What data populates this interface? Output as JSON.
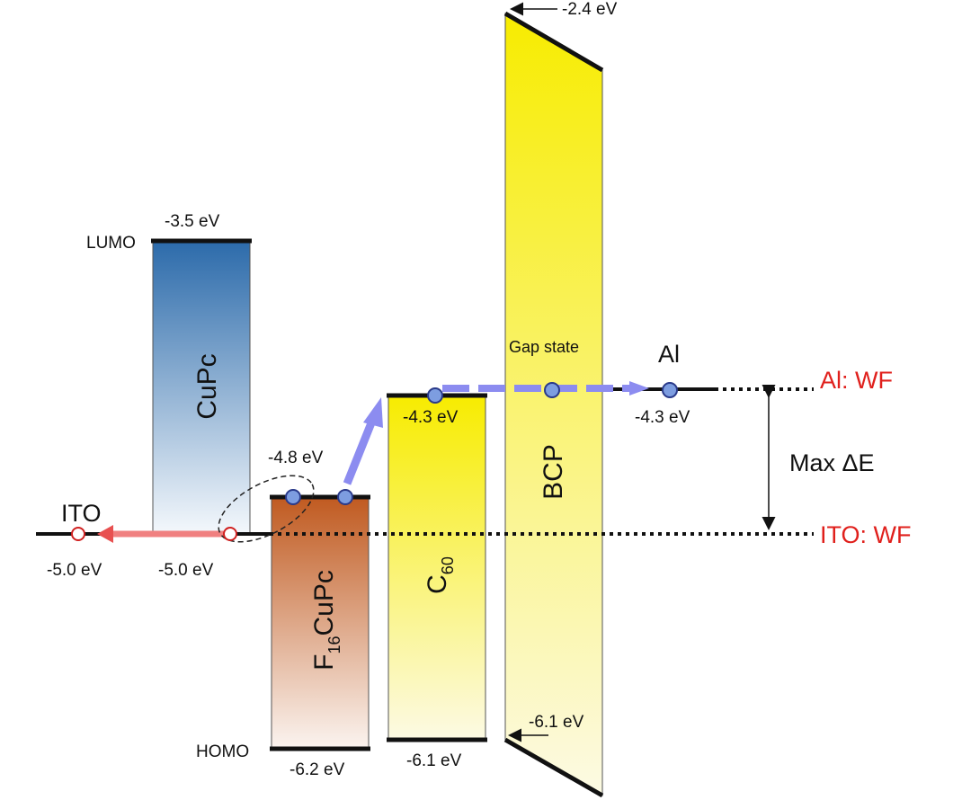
{
  "top_labels": {
    "bcp_lumo": "-2.4 eV",
    "cupc_lumo": "-3.5 eV",
    "lumo": "LUMO",
    "homo": "HOMO"
  },
  "materials": {
    "cupc": {
      "name": "CuPc"
    },
    "f16cupc": {
      "prefix": "F",
      "sub": "16",
      "suffix": "CuPc",
      "lumo": "-4.8 eV",
      "homo": "-6.2 eV"
    },
    "c60": {
      "prefix": "C",
      "sub": "60",
      "lumo": "-4.3 eV",
      "homo": "-6.1 eV"
    },
    "bcp": {
      "name": "BCP",
      "gap_state": "Gap state",
      "homo": "-6.1 eV"
    },
    "al": {
      "name": "Al",
      "level": "-4.3 eV",
      "wf": "Al: WF"
    },
    "ito": {
      "name": "ITO",
      "level": "-5.0 eV",
      "interface": "-5.0 eV",
      "wf": "ITO: WF"
    }
  },
  "max_delta": "Max ΔE"
}
